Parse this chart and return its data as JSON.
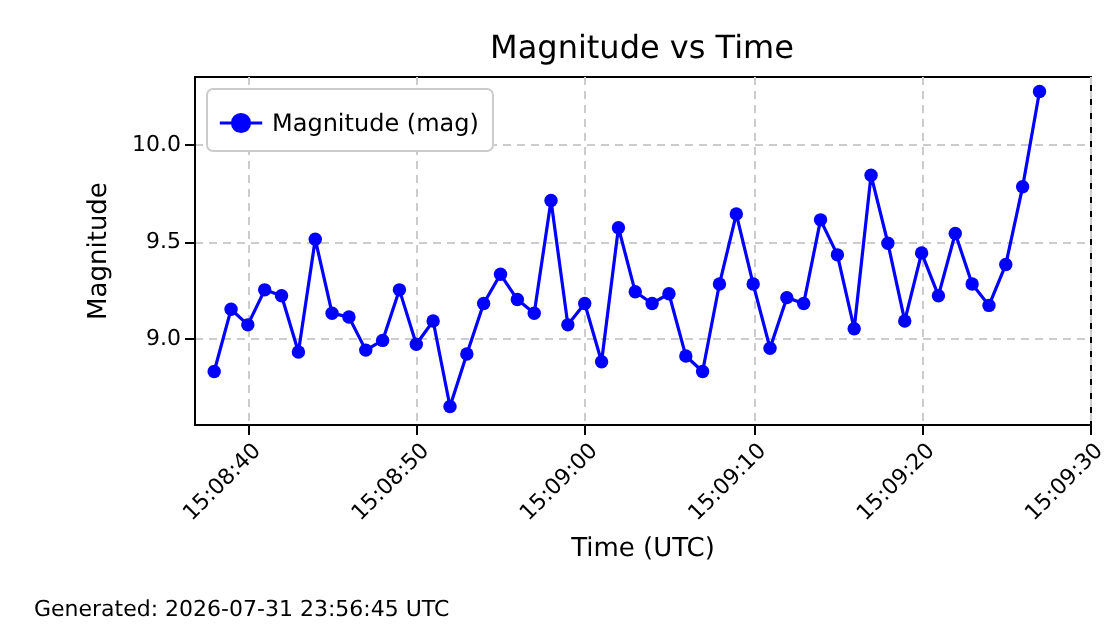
{
  "chart_data": {
    "type": "line",
    "title": "Magnitude vs Time",
    "xlabel": "Time (UTC)",
    "ylabel": "Magnitude",
    "annotations": [
      "Generated: 2026-07-31 23:56:45 UTC"
    ],
    "x": [
      15.143889,
      15.144167,
      15.144444,
      15.144722,
      15.145,
      15.145278,
      15.145556,
      15.145833,
      15.146111,
      15.146389,
      15.146667,
      15.146944,
      15.147222,
      15.1475,
      15.147778,
      15.148056,
      15.148333,
      15.148611,
      15.148889,
      15.149167,
      15.149444,
      15.149722,
      15.15,
      15.150278,
      15.150556,
      15.150833,
      15.151111,
      15.151389,
      15.151667,
      15.151944,
      15.152222,
      15.1525,
      15.152778,
      15.153056,
      15.153333,
      15.153611,
      15.153889,
      15.154167,
      15.154444,
      15.154722,
      15.155,
      15.155278,
      15.155556,
      15.155833,
      15.156111,
      15.156389,
      15.156667,
      15.156944,
      15.157222,
      15.1575
    ],
    "series": [
      {
        "name": "Magnitude (mag)",
        "color": "#0000ff",
        "values": [
          8.83,
          9.15,
          9.07,
          9.25,
          9.22,
          8.93,
          9.51,
          9.13,
          9.11,
          8.94,
          8.99,
          9.25,
          8.97,
          9.09,
          8.65,
          8.92,
          9.18,
          9.33,
          9.2,
          9.13,
          9.71,
          9.07,
          9.18,
          8.88,
          9.57,
          9.24,
          9.18,
          9.23,
          8.91,
          8.83,
          9.28,
          9.64,
          9.28,
          8.95,
          9.21,
          9.18,
          9.61,
          9.43,
          9.05,
          9.84,
          9.49,
          9.09,
          9.44,
          9.22,
          9.54,
          9.28,
          9.17,
          9.38,
          9.78,
          10.27
        ]
      }
    ],
    "xlim": [
      15.143556,
      15.158333
    ],
    "xticks": [
      {
        "value": 15.144444,
        "label": "15:08:40"
      },
      {
        "value": 15.147222,
        "label": "15:08:50"
      },
      {
        "value": 15.15,
        "label": "15:09:00"
      },
      {
        "value": 15.152778,
        "label": "15:09:10"
      },
      {
        "value": 15.155556,
        "label": "15:09:20"
      },
      {
        "value": 15.158333,
        "label": "15:09:30"
      }
    ],
    "ylim": [
      8.56,
      10.35
    ],
    "yticks": [
      {
        "value": 9,
        "label": "9.0"
      },
      9.5,
      {
        "value": 10,
        "label": "10.0"
      }
    ],
    "grid": true,
    "legend": "top left",
    "marker": "circle",
    "line_style": "solid"
  }
}
